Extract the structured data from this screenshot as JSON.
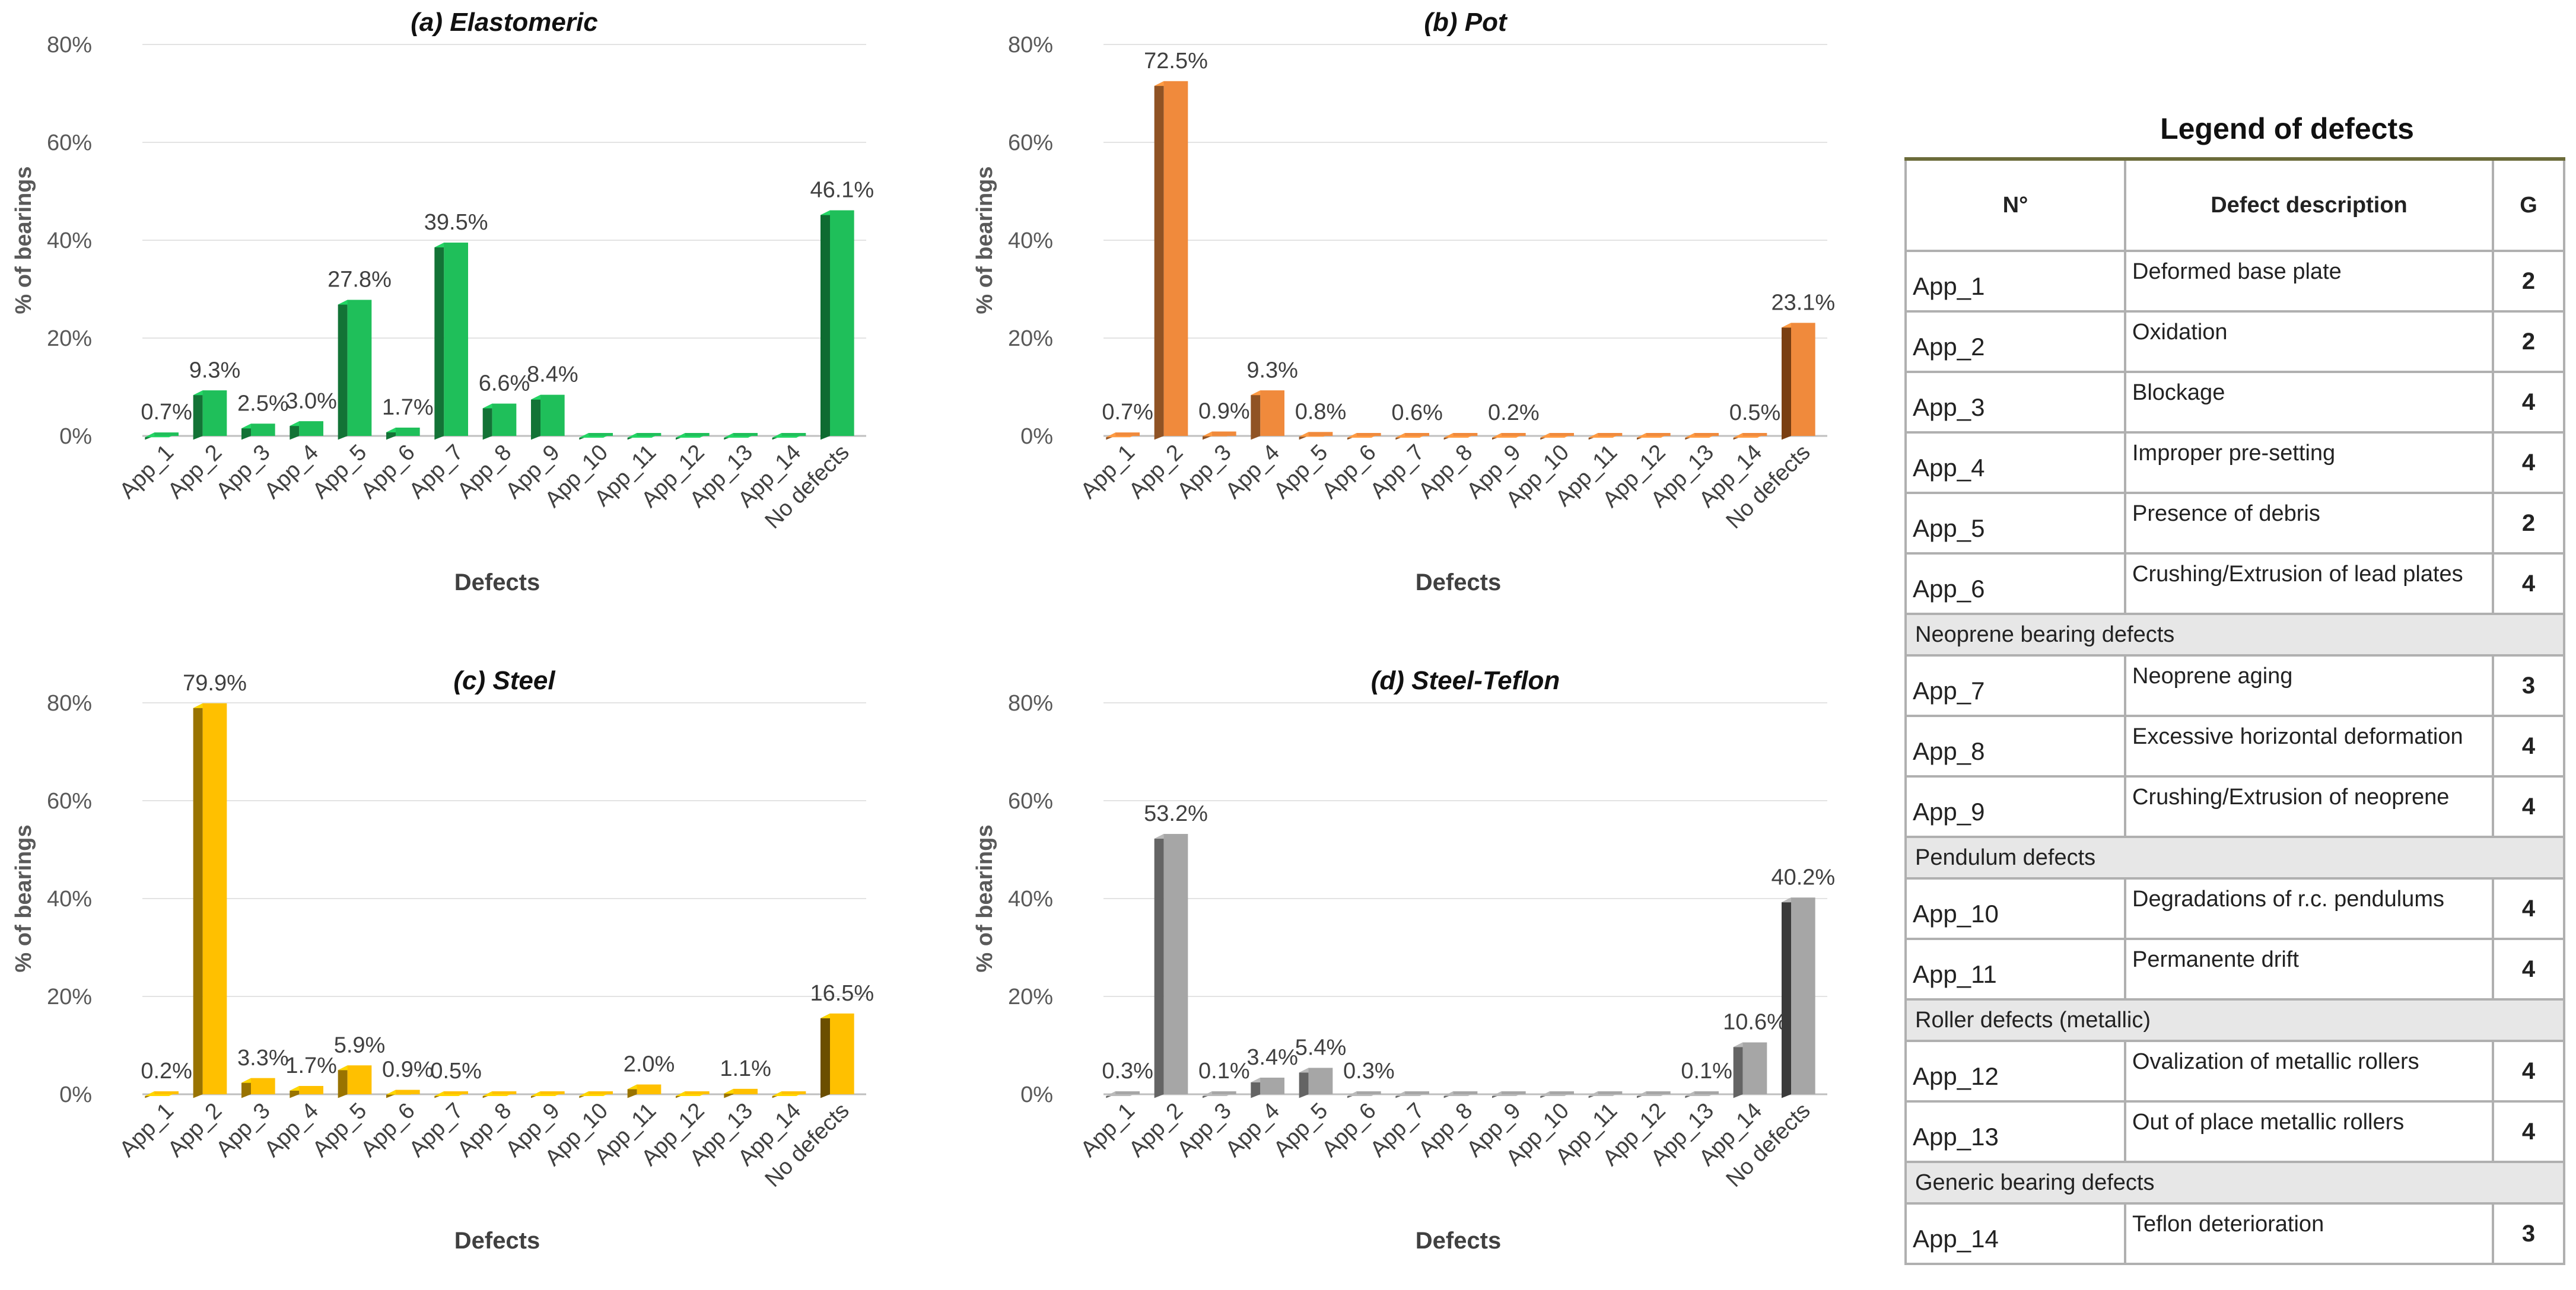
{
  "chart_data": [
    {
      "id": "a",
      "type": "bar",
      "title": "(a) Elastomeric",
      "xlabel": "Defects",
      "ylabel": "% of bearings",
      "ylim": [
        0,
        80
      ],
      "yticks": [
        "0%",
        "20%",
        "40%",
        "60%",
        "80%"
      ],
      "categories": [
        "App_1",
        "App_2",
        "App_3",
        "App_4",
        "App_5",
        "App_6",
        "App_7",
        "App_8",
        "App_9",
        "App_10",
        "App_11",
        "App_12",
        "App_13",
        "App_14",
        "No defects"
      ],
      "values": [
        0.7,
        9.3,
        2.5,
        3.0,
        27.8,
        1.7,
        39.5,
        6.6,
        8.4,
        0,
        0,
        0,
        0,
        0,
        46.1
      ],
      "labels": [
        "0.7%",
        "9.3%",
        "2.5%",
        "3.0%",
        "27.8%",
        "1.7%",
        "39.5%",
        "6.6%",
        "8.4%",
        "",
        "",
        "",
        "",
        "",
        "46.1%"
      ],
      "color": "#1fbf5a",
      "last_color": "#0e6b31"
    },
    {
      "id": "b",
      "type": "bar",
      "title": "(b) Pot",
      "xlabel": "Defects",
      "ylabel": "% of bearings",
      "ylim": [
        0,
        80
      ],
      "yticks": [
        "0%",
        "20%",
        "40%",
        "60%",
        "80%"
      ],
      "categories": [
        "App_1",
        "App_2",
        "App_3",
        "App_4",
        "App_5",
        "App_6",
        "App_7",
        "App_8",
        "App_9",
        "App_10",
        "App_11",
        "App_12",
        "App_13",
        "App_14",
        "No defects"
      ],
      "values": [
        0.7,
        72.5,
        0.9,
        9.3,
        0.8,
        0,
        0.6,
        0,
        0.2,
        0,
        0,
        0,
        0,
        0.5,
        23.1
      ],
      "labels": [
        "0.7%",
        "72.5%",
        "0.9%",
        "9.3%",
        "0.8%",
        "",
        "0.6%",
        "",
        "0.2%",
        "",
        "",
        "",
        "",
        "0.5%",
        "23.1%"
      ],
      "color": "#f08a3c",
      "last_color": "#7a3f12"
    },
    {
      "id": "c",
      "type": "bar",
      "title": "(c) Steel",
      "xlabel": "Defects",
      "ylabel": "% of bearings",
      "ylim": [
        0,
        80
      ],
      "yticks": [
        "0%",
        "20%",
        "40%",
        "60%",
        "80%"
      ],
      "categories": [
        "App_1",
        "App_2",
        "App_3",
        "App_4",
        "App_5",
        "App_6",
        "App_7",
        "App_8",
        "App_9",
        "App_10",
        "App_11",
        "App_12",
        "App_13",
        "App_14",
        "No defects"
      ],
      "values": [
        0.2,
        79.9,
        3.3,
        1.7,
        5.9,
        0.9,
        0.5,
        0,
        0,
        0,
        2.0,
        0,
        1.1,
        0,
        16.5
      ],
      "labels": [
        "0.2%",
        "79.9%",
        "3.3%",
        "1.7%",
        "5.9%",
        "0.9%",
        "0.5%",
        "",
        "",
        "",
        "2.0%",
        "",
        "1.1%",
        "",
        "16.5%"
      ],
      "color": "#ffc000",
      "last_color": "#6b4e00"
    },
    {
      "id": "d",
      "type": "bar",
      "title": "(d) Steel-Teflon",
      "xlabel": "Defects",
      "ylabel": "% of bearings",
      "ylim": [
        0,
        80
      ],
      "yticks": [
        "0%",
        "20%",
        "40%",
        "60%",
        "80%"
      ],
      "categories": [
        "App_1",
        "App_2",
        "App_3",
        "App_4",
        "App_5",
        "App_6",
        "App_7",
        "App_8",
        "App_9",
        "App_10",
        "App_11",
        "App_12",
        "App_13",
        "App_14",
        "No defects"
      ],
      "values": [
        0.3,
        53.2,
        0.1,
        3.4,
        5.4,
        0.3,
        0,
        0,
        0,
        0,
        0,
        0,
        0.1,
        10.6,
        40.2
      ],
      "labels": [
        "0.3%",
        "53.2%",
        "0.1%",
        "3.4%",
        "5.4%",
        "0.3%",
        "",
        "",
        "",
        "",
        "",
        "",
        "0.1%",
        "10.6%",
        "40.2%"
      ],
      "color": "#a6a6a6",
      "last_color": "#3a3a3a"
    }
  ],
  "legend": {
    "title": "Legend of defects",
    "headers": {
      "num": "N°",
      "desc": "Defect description",
      "g": "G"
    },
    "rows": [
      {
        "kind": "row",
        "code": "App_1",
        "desc": "Deformed base plate",
        "g": "2"
      },
      {
        "kind": "row",
        "code": "App_2",
        "desc": "Oxidation",
        "g": "2"
      },
      {
        "kind": "row",
        "code": "App_3",
        "desc": "Blockage",
        "g": "4"
      },
      {
        "kind": "row",
        "code": "App_4",
        "desc": "Improper pre-setting",
        "g": "4"
      },
      {
        "kind": "row",
        "code": "App_5",
        "desc": "Presence of debris",
        "g": "2"
      },
      {
        "kind": "row",
        "code": "App_6",
        "desc": "Crushing/Extrusion of lead plates",
        "g": "4"
      },
      {
        "kind": "section",
        "label": "Neoprene bearing defects"
      },
      {
        "kind": "row",
        "code": "App_7",
        "desc": "Neoprene aging",
        "g": "3"
      },
      {
        "kind": "row",
        "code": "App_8",
        "desc": "Excessive horizontal deformation",
        "g": "4"
      },
      {
        "kind": "row",
        "code": "App_9",
        "desc": "Crushing/Extrusion of neoprene",
        "g": "4"
      },
      {
        "kind": "section",
        "label": "Pendulum defects"
      },
      {
        "kind": "row",
        "code": "App_10",
        "desc": "Degradations  of r.c. pendulums",
        "g": "4"
      },
      {
        "kind": "row",
        "code": "App_11",
        "desc": "Permanente drift",
        "g": "4"
      },
      {
        "kind": "section",
        "label": "Roller defects (metallic)"
      },
      {
        "kind": "row",
        "code": "App_12",
        "desc": "Ovalization of metallic rollers",
        "g": "4"
      },
      {
        "kind": "row",
        "code": "App_13",
        "desc": "Out of place metallic rollers",
        "g": "4"
      },
      {
        "kind": "section",
        "label": "Generic bearing defects"
      },
      {
        "kind": "row",
        "code": "App_14",
        "desc": "Teflon deterioration",
        "g": "3"
      }
    ]
  }
}
